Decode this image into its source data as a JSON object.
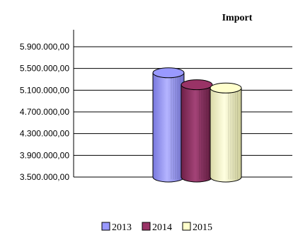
{
  "chart_data": {
    "type": "bar",
    "title": "Import",
    "categories": [
      ""
    ],
    "series": [
      {
        "name": "2013",
        "values": [
          5420000
        ],
        "color": "#9999ff"
      },
      {
        "name": "2014",
        "values": [
          5200000
        ],
        "color": "#993366"
      },
      {
        "name": "2015",
        "values": [
          5140000
        ],
        "color": "#ffffcc"
      }
    ],
    "ylim": [
      3500000,
      5900000
    ],
    "yticks": [
      "3.500.000,00",
      "3.900.000,00",
      "4.300.000,00",
      "4.700.000,00",
      "5.100.000,00",
      "5.500.000,00",
      "5.900.000,00"
    ],
    "ytick_values": [
      3500000,
      3900000,
      4300000,
      4700000,
      5100000,
      5500000,
      5900000
    ],
    "grid": true,
    "legend_position": "bottom",
    "bar_shape": "cylinder"
  }
}
